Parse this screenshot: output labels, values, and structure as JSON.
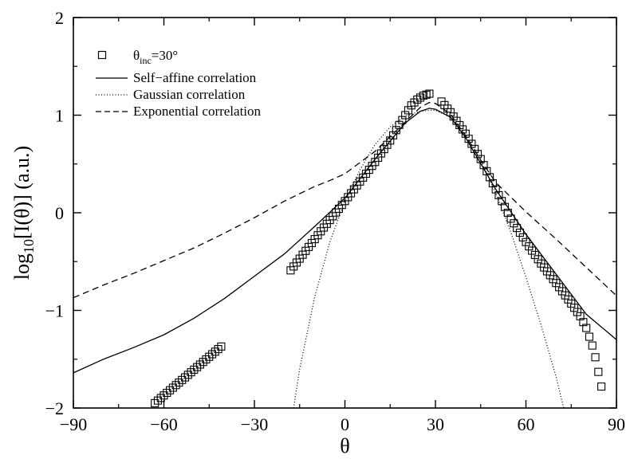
{
  "chart_data": {
    "type": "line",
    "title": "",
    "xlabel": "θ",
    "ylabel": "log10[I(θ)] (a.u.)",
    "ylabel_parts": {
      "pre": "log",
      "sub": "10",
      "post": "[I(θ)]  (a.u.)"
    },
    "xlim": [
      -90,
      90
    ],
    "ylim": [
      -2,
      2
    ],
    "x_ticks": [
      -90,
      -60,
      -30,
      0,
      30,
      60,
      90
    ],
    "x_tick_labels": [
      "−90",
      "−60",
      "−30",
      "0",
      "30",
      "60",
      "90"
    ],
    "y_ticks": [
      -2,
      -1,
      0,
      1,
      2
    ],
    "y_tick_labels": [
      "−2",
      "−1",
      "0",
      "1",
      "2"
    ],
    "grid": false,
    "legend_position": "top-left",
    "legend": {
      "data_label": {
        "pre": "θ",
        "sub": "inc",
        "post": "=30°"
      },
      "self_affine": "Self−affine correlation",
      "gaussian": "Gaussian correlation",
      "exponential": "Exponential correlation"
    },
    "series": [
      {
        "name": "θinc=30°",
        "style": "open-square",
        "color": "#000000",
        "segments": [
          {
            "x_start": -63,
            "x_end": -41,
            "y_start": -1.95,
            "y_end": -1.37,
            "step": 1
          },
          {
            "x_start": -18,
            "x_end": 28,
            "step": 1,
            "points": [
              [
                -18,
                -0.59
              ],
              [
                -8,
                -0.19
              ],
              [
                -1,
                0.08
              ],
              [
                5,
                0.32
              ],
              [
                10,
                0.52
              ],
              [
                15,
                0.74
              ],
              [
                18,
                0.9
              ],
              [
                20,
                1.0
              ],
              [
                22,
                1.1
              ],
              [
                24,
                1.16
              ],
              [
                26,
                1.2
              ],
              [
                28,
                1.22
              ]
            ]
          },
          {
            "x_start": 32,
            "x_end": 85,
            "step": 1,
            "points": [
              [
                32,
                1.14
              ],
              [
                35,
                1.03
              ],
              [
                40,
                0.81
              ],
              [
                45,
                0.55
              ],
              [
                50,
                0.24
              ],
              [
                55,
                -0.06
              ],
              [
                60,
                -0.3
              ],
              [
                65,
                -0.52
              ],
              [
                70,
                -0.72
              ],
              [
                75,
                -0.93
              ],
              [
                78,
                -1.06
              ],
              [
                80,
                -1.18
              ],
              [
                82,
                -1.36
              ],
              [
                83,
                -1.48
              ],
              [
                84,
                -1.63
              ],
              [
                85,
                -1.78
              ]
            ]
          }
        ]
      },
      {
        "name": "Self−affine correlation",
        "style": "solid",
        "color": "#000000",
        "points": [
          [
            -90,
            -1.64
          ],
          [
            -80,
            -1.5
          ],
          [
            -70,
            -1.38
          ],
          [
            -60,
            -1.25
          ],
          [
            -50,
            -1.08
          ],
          [
            -40,
            -0.88
          ],
          [
            -30,
            -0.65
          ],
          [
            -20,
            -0.42
          ],
          [
            -10,
            -0.14
          ],
          [
            0,
            0.15
          ],
          [
            10,
            0.55
          ],
          [
            20,
            0.92
          ],
          [
            25,
            1.04
          ],
          [
            28,
            1.07
          ],
          [
            30,
            1.06
          ],
          [
            35,
            0.98
          ],
          [
            40,
            0.77
          ],
          [
            50,
            0.24
          ],
          [
            60,
            -0.22
          ],
          [
            70,
            -0.63
          ],
          [
            80,
            -1.04
          ],
          [
            90,
            -1.3
          ]
        ]
      },
      {
        "name": "Gaussian correlation",
        "style": "dotted",
        "color": "#000000",
        "points": [
          [
            -17,
            -2.0
          ],
          [
            -15,
            -1.6
          ],
          [
            -10,
            -0.86
          ],
          [
            -5,
            -0.3
          ],
          [
            0,
            0.12
          ],
          [
            5,
            0.44
          ],
          [
            10,
            0.7
          ],
          [
            15,
            0.88
          ],
          [
            20,
            0.99
          ],
          [
            25,
            1.04
          ],
          [
            28,
            1.05
          ],
          [
            30,
            1.05
          ],
          [
            35,
            0.98
          ],
          [
            40,
            0.8
          ],
          [
            45,
            0.54
          ],
          [
            50,
            0.2
          ],
          [
            55,
            -0.2
          ],
          [
            60,
            -0.66
          ],
          [
            65,
            -1.15
          ],
          [
            70,
            -1.68
          ],
          [
            72.5,
            -2.0
          ]
        ]
      },
      {
        "name": "Exponential correlation",
        "style": "dashed",
        "color": "#000000",
        "points": [
          [
            -90,
            -0.87
          ],
          [
            -80,
            -0.74
          ],
          [
            -70,
            -0.62
          ],
          [
            -60,
            -0.49
          ],
          [
            -50,
            -0.36
          ],
          [
            -40,
            -0.21
          ],
          [
            -30,
            -0.05
          ],
          [
            -20,
            0.12
          ],
          [
            -10,
            0.27
          ],
          [
            -5,
            0.33
          ],
          [
            0,
            0.4
          ],
          [
            10,
            0.63
          ],
          [
            20,
            0.93
          ],
          [
            25,
            1.08
          ],
          [
            28,
            1.13
          ],
          [
            30,
            1.12
          ],
          [
            35,
            1.01
          ],
          [
            40,
            0.79
          ],
          [
            45,
            0.54
          ],
          [
            50,
            0.31
          ],
          [
            60,
            0.01
          ],
          [
            70,
            -0.27
          ],
          [
            80,
            -0.56
          ],
          [
            90,
            -0.85
          ]
        ]
      }
    ]
  }
}
